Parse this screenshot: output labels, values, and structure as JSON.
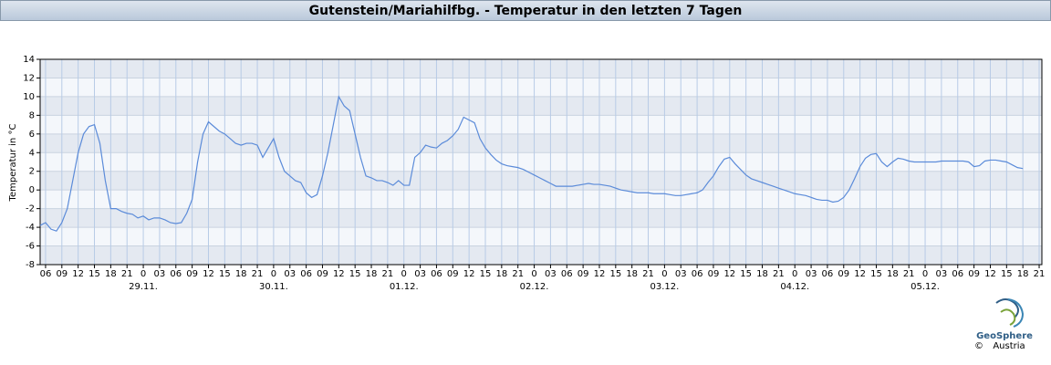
{
  "chart_data": {
    "type": "line",
    "title": "Gutenstein/Mariahilfbg. - Temperatur in den letzten 7 Tagen",
    "ylabel": "Temperatur in °C",
    "xlim": [
      5,
      189.5
    ],
    "ylim": [
      -8,
      14
    ],
    "yticks": [
      -8,
      -6,
      -4,
      -2,
      0,
      2,
      4,
      6,
      8,
      10,
      12,
      14
    ],
    "xticks": [
      {
        "value": 6,
        "label": "06"
      },
      {
        "value": 9,
        "label": "09"
      },
      {
        "value": 12,
        "label": "12"
      },
      {
        "value": 15,
        "label": "15"
      },
      {
        "value": 18,
        "label": "18"
      },
      {
        "value": 21,
        "label": "21"
      },
      {
        "value": 24,
        "label": "0"
      },
      {
        "value": 27,
        "label": "03"
      },
      {
        "value": 30,
        "label": "06"
      },
      {
        "value": 33,
        "label": "09"
      },
      {
        "value": 36,
        "label": "12"
      },
      {
        "value": 39,
        "label": "15"
      },
      {
        "value": 42,
        "label": "18"
      },
      {
        "value": 45,
        "label": "21"
      },
      {
        "value": 48,
        "label": "0"
      },
      {
        "value": 51,
        "label": "03"
      },
      {
        "value": 54,
        "label": "06"
      },
      {
        "value": 57,
        "label": "09"
      },
      {
        "value": 60,
        "label": "12"
      },
      {
        "value": 63,
        "label": "15"
      },
      {
        "value": 66,
        "label": "18"
      },
      {
        "value": 69,
        "label": "21"
      },
      {
        "value": 72,
        "label": "0"
      },
      {
        "value": 75,
        "label": "03"
      },
      {
        "value": 78,
        "label": "06"
      },
      {
        "value": 81,
        "label": "09"
      },
      {
        "value": 84,
        "label": "12"
      },
      {
        "value": 87,
        "label": "15"
      },
      {
        "value": 90,
        "label": "18"
      },
      {
        "value": 93,
        "label": "21"
      },
      {
        "value": 96,
        "label": "0"
      },
      {
        "value": 99,
        "label": "03"
      },
      {
        "value": 102,
        "label": "06"
      },
      {
        "value": 105,
        "label": "09"
      },
      {
        "value": 108,
        "label": "12"
      },
      {
        "value": 111,
        "label": "15"
      },
      {
        "value": 114,
        "label": "18"
      },
      {
        "value": 117,
        "label": "21"
      },
      {
        "value": 120,
        "label": "0"
      },
      {
        "value": 123,
        "label": "03"
      },
      {
        "value": 126,
        "label": "06"
      },
      {
        "value": 129,
        "label": "09"
      },
      {
        "value": 132,
        "label": "12"
      },
      {
        "value": 135,
        "label": "15"
      },
      {
        "value": 138,
        "label": "18"
      },
      {
        "value": 141,
        "label": "21"
      },
      {
        "value": 144,
        "label": "0"
      },
      {
        "value": 147,
        "label": "03"
      },
      {
        "value": 150,
        "label": "06"
      },
      {
        "value": 153,
        "label": "09"
      },
      {
        "value": 156,
        "label": "12"
      },
      {
        "value": 159,
        "label": "15"
      },
      {
        "value": 162,
        "label": "18"
      },
      {
        "value": 165,
        "label": "21"
      },
      {
        "value": 168,
        "label": "0"
      },
      {
        "value": 171,
        "label": "03"
      },
      {
        "value": 174,
        "label": "06"
      },
      {
        "value": 177,
        "label": "09"
      },
      {
        "value": 180,
        "label": "12"
      },
      {
        "value": 183,
        "label": "15"
      },
      {
        "value": 186,
        "label": "18"
      },
      {
        "value": 189,
        "label": "21"
      }
    ],
    "date_ticks": [
      {
        "value": 24,
        "label": "29.11."
      },
      {
        "value": 48,
        "label": "30.11."
      },
      {
        "value": 72,
        "label": "01.12."
      },
      {
        "value": 96,
        "label": "02.12."
      },
      {
        "value": 120,
        "label": "03.12."
      },
      {
        "value": 144,
        "label": "04.12."
      },
      {
        "value": 168,
        "label": "05.12."
      }
    ],
    "grid": true,
    "color": "#5b8bd9",
    "x": [
      5,
      6,
      7,
      8,
      9,
      10,
      11,
      12,
      13,
      14,
      15,
      16,
      17,
      18,
      19,
      20,
      21,
      22,
      23,
      24,
      25,
      26,
      27,
      28,
      29,
      30,
      31,
      32,
      33,
      34,
      35,
      36,
      37,
      38,
      39,
      40,
      41,
      42,
      43,
      44,
      45,
      46,
      47,
      48,
      49,
      50,
      51,
      52,
      53,
      54,
      55,
      56,
      57,
      58,
      59,
      60,
      61,
      62,
      63,
      64,
      65,
      66,
      67,
      68,
      69,
      70,
      71,
      72,
      73,
      74,
      75,
      76,
      77,
      78,
      79,
      80,
      81,
      82,
      83,
      84,
      85,
      86,
      87,
      88,
      89,
      90,
      91,
      92,
      93,
      94,
      95,
      96,
      97,
      98,
      99,
      100,
      101,
      102,
      103,
      104,
      105,
      106,
      107,
      108,
      109,
      110,
      111,
      112,
      113,
      114,
      115,
      116,
      117,
      118,
      119,
      120,
      121,
      122,
      123,
      124,
      125,
      126,
      127,
      128,
      129,
      130,
      131,
      132,
      133,
      134,
      135,
      136,
      137,
      138,
      139,
      140,
      141,
      142,
      143,
      144,
      145,
      146,
      147,
      148,
      149,
      150,
      151,
      152,
      153,
      154,
      155,
      156,
      157,
      158,
      159,
      160,
      161,
      162,
      163,
      164,
      165,
      166,
      167,
      168,
      169,
      170,
      171,
      172,
      173,
      174,
      175,
      176,
      177,
      178,
      179,
      180,
      181,
      182,
      183,
      184,
      185,
      186
    ],
    "values": [
      -3.8,
      -3.5,
      -4.2,
      -4.4,
      -3.5,
      -2,
      1,
      4,
      6,
      6.8,
      7,
      5,
      1,
      -2,
      -2,
      -2.3,
      -2.5,
      -2.6,
      -3,
      -2.8,
      -3.2,
      -3,
      -3,
      -3.2,
      -3.5,
      -3.6,
      -3.5,
      -2.5,
      -1,
      3,
      6,
      7.3,
      6.8,
      6.3,
      6,
      5.5,
      5,
      4.8,
      5,
      5,
      4.8,
      3.5,
      4.5,
      5.5,
      3.5,
      2,
      1.5,
      1,
      0.8,
      -0.3,
      -0.8,
      -0.5,
      1.5,
      4,
      7,
      10,
      9,
      8.5,
      6,
      3.5,
      1.5,
      1.3,
      1,
      1,
      0.8,
      0.5,
      1,
      0.5,
      0.5,
      3.5,
      4,
      4.8,
      4.6,
      4.5,
      5,
      5.3,
      5.8,
      6.5,
      7.8,
      7.5,
      7.2,
      5.5,
      4.5,
      3.8,
      3.2,
      2.8,
      2.6,
      2.5,
      2.4,
      2.2,
      1.9,
      1.6,
      1.3,
      1,
      0.7,
      0.4,
      0.4,
      0.4,
      0.4,
      0.5,
      0.6,
      0.7,
      0.6,
      0.6,
      0.5,
      0.4,
      0.2,
      0,
      -0.1,
      -0.2,
      -0.3,
      -0.3,
      -0.3,
      -0.4,
      -0.4,
      -0.4,
      -0.5,
      -0.6,
      -0.6,
      -0.5,
      -0.4,
      -0.3,
      0,
      0.8,
      1.5,
      2.5,
      3.3,
      3.5,
      2.8,
      2.2,
      1.6,
      1.2,
      1,
      0.8,
      0.6,
      0.4,
      0.2,
      0,
      -0.2,
      -0.4,
      -0.5,
      -0.6,
      -0.8,
      -1,
      -1.1,
      -1.1,
      -1.3,
      -1.2,
      -0.8,
      0,
      1.2,
      2.5,
      3.4,
      3.8,
      3.9,
      3,
      2.5,
      3,
      3.4,
      3.3,
      3.1,
      3,
      3,
      3,
      3,
      3,
      3.1,
      3.1,
      3.1,
      3.1,
      3.1,
      3,
      2.5,
      2.6,
      3.1,
      3.2,
      3.2,
      3.1,
      3,
      2.7,
      2.4,
      2.3
    ]
  },
  "logo": {
    "name": "GeoSphere",
    "sub": "Austria",
    "copyright": "©"
  }
}
